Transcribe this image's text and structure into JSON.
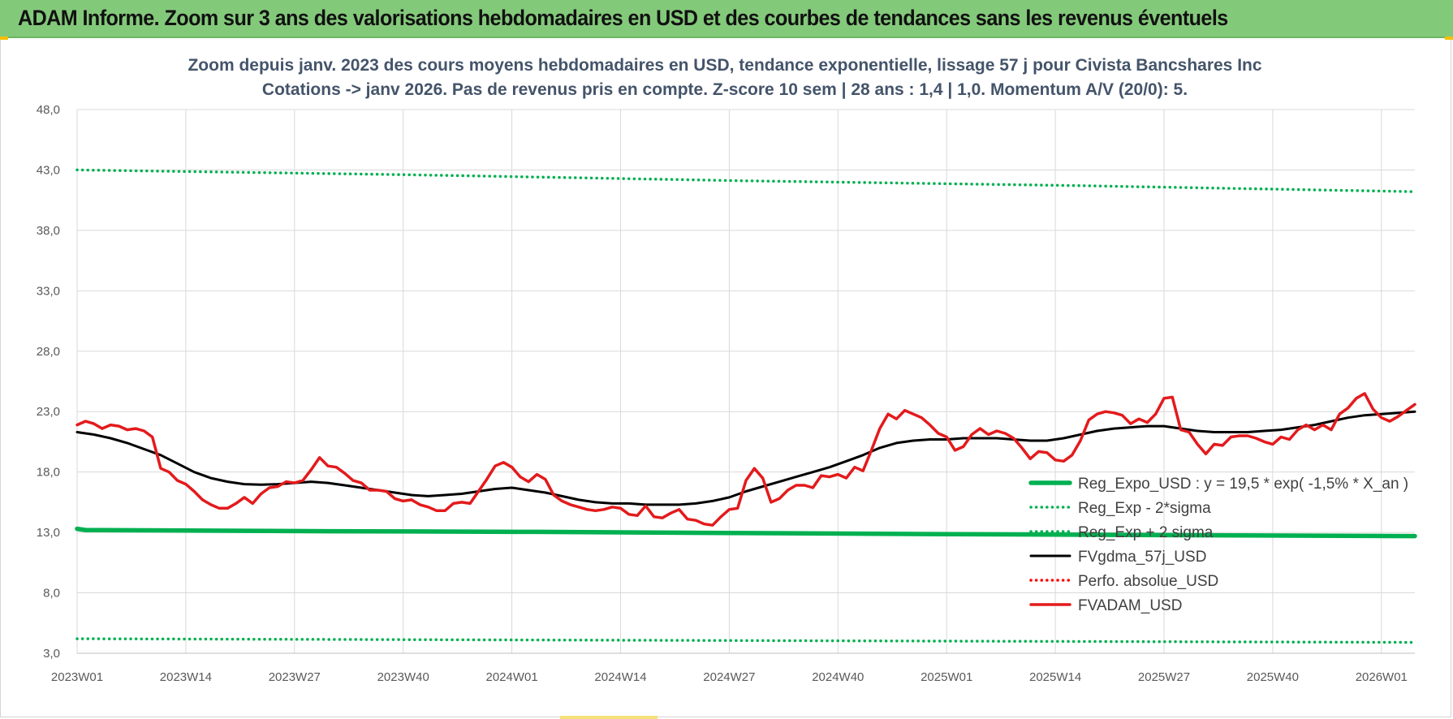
{
  "header": {
    "title": "ADAM Informe. Zoom sur 3 ans des valorisations hebdomadaires en USD et des courbes de tendances sans les revenus éventuels"
  },
  "chart_data": {
    "type": "line",
    "title_line1": "Zoom depuis janv. 2023 des cours moyens hebdomadaires en USD, tendance exponentielle, lissage 57 j pour Civista Bancshares Inc",
    "title_line2": "Cotations -> janv 2026. Pas de revenus pris en compte. Z-score 10 sem | 28 ans : 1,4 | 1,0. Momentum A/V (20/0): 5.",
    "ylim": [
      3,
      48
    ],
    "yticks": [
      "3,0",
      "8,0",
      "13,0",
      "18,0",
      "23,0",
      "28,0",
      "33,0",
      "38,0",
      "43,0",
      "48,0"
    ],
    "xticks": [
      {
        "label": "2023W01",
        "week": 0
      },
      {
        "label": "2023W14",
        "week": 13
      },
      {
        "label": "2023W27",
        "week": 26
      },
      {
        "label": "2023W40",
        "week": 39
      },
      {
        "label": "2024W01",
        "week": 52
      },
      {
        "label": "2024W14",
        "week": 65
      },
      {
        "label": "2024W27",
        "week": 78
      },
      {
        "label": "2024W40",
        "week": 91
      },
      {
        "label": "2025W01",
        "week": 104
      },
      {
        "label": "2025W14",
        "week": 117
      },
      {
        "label": "2025W27",
        "week": 130
      },
      {
        "label": "2025W40",
        "week": 143
      },
      {
        "label": "2026W01",
        "week": 156
      }
    ],
    "x_range_weeks": [
      0,
      160
    ],
    "series": [
      {
        "name": "Reg_Expo_USD : y = 19,5 * exp( -1,5% *  X_an )",
        "color": "#00b050",
        "style": "solid-thick",
        "points": [
          [
            0,
            13.3
          ],
          [
            1,
            13.2
          ],
          [
            30,
            13.1
          ],
          [
            55,
            13.05
          ],
          [
            80,
            12.95
          ],
          [
            105,
            12.85
          ],
          [
            160,
            12.7
          ]
        ]
      },
      {
        "name": "Reg_Exp - 2*sigma",
        "color": "#00b050",
        "style": "dotted",
        "points": [
          [
            0,
            4.2
          ],
          [
            160,
            3.9
          ]
        ]
      },
      {
        "name": "Reg_Exp + 2 sigma",
        "color": "#00b050",
        "style": "dotted",
        "points": [
          [
            0,
            43.0
          ],
          [
            40,
            42.6
          ],
          [
            80,
            42.1
          ],
          [
            120,
            41.7
          ],
          [
            160,
            41.2
          ]
        ]
      },
      {
        "name": "FVgdma_57j_USD",
        "color": "#000000",
        "style": "solid",
        "points": [
          [
            0,
            21.3
          ],
          [
            2,
            21.1
          ],
          [
            4,
            20.8
          ],
          [
            6,
            20.4
          ],
          [
            8,
            19.9
          ],
          [
            10,
            19.4
          ],
          [
            12,
            18.7
          ],
          [
            14,
            18.0
          ],
          [
            16,
            17.5
          ],
          [
            18,
            17.2
          ],
          [
            20,
            17.0
          ],
          [
            22,
            16.95
          ],
          [
            24,
            17.0
          ],
          [
            26,
            17.1
          ],
          [
            28,
            17.2
          ],
          [
            30,
            17.1
          ],
          [
            32,
            16.9
          ],
          [
            34,
            16.7
          ],
          [
            36,
            16.5
          ],
          [
            38,
            16.3
          ],
          [
            40,
            16.1
          ],
          [
            42,
            16.0
          ],
          [
            44,
            16.1
          ],
          [
            46,
            16.2
          ],
          [
            48,
            16.4
          ],
          [
            50,
            16.6
          ],
          [
            52,
            16.7
          ],
          [
            54,
            16.5
          ],
          [
            56,
            16.3
          ],
          [
            58,
            16.0
          ],
          [
            60,
            15.7
          ],
          [
            62,
            15.5
          ],
          [
            64,
            15.4
          ],
          [
            66,
            15.4
          ],
          [
            68,
            15.3
          ],
          [
            70,
            15.3
          ],
          [
            72,
            15.3
          ],
          [
            74,
            15.4
          ],
          [
            76,
            15.6
          ],
          [
            78,
            15.9
          ],
          [
            80,
            16.4
          ],
          [
            82,
            16.8
          ],
          [
            84,
            17.2
          ],
          [
            86,
            17.6
          ],
          [
            88,
            18.0
          ],
          [
            90,
            18.4
          ],
          [
            92,
            18.9
          ],
          [
            94,
            19.4
          ],
          [
            96,
            20.0
          ],
          [
            98,
            20.4
          ],
          [
            100,
            20.6
          ],
          [
            102,
            20.7
          ],
          [
            104,
            20.7
          ],
          [
            106,
            20.8
          ],
          [
            108,
            20.8
          ],
          [
            110,
            20.8
          ],
          [
            112,
            20.7
          ],
          [
            114,
            20.6
          ],
          [
            116,
            20.6
          ],
          [
            118,
            20.8
          ],
          [
            120,
            21.1
          ],
          [
            122,
            21.4
          ],
          [
            124,
            21.6
          ],
          [
            126,
            21.7
          ],
          [
            128,
            21.8
          ],
          [
            130,
            21.8
          ],
          [
            132,
            21.6
          ],
          [
            134,
            21.4
          ],
          [
            136,
            21.3
          ],
          [
            138,
            21.3
          ],
          [
            140,
            21.3
          ],
          [
            142,
            21.4
          ],
          [
            144,
            21.5
          ],
          [
            146,
            21.7
          ],
          [
            148,
            21.9
          ],
          [
            150,
            22.2
          ],
          [
            152,
            22.5
          ],
          [
            154,
            22.7
          ],
          [
            156,
            22.8
          ],
          [
            158,
            22.9
          ],
          [
            160,
            23.0
          ]
        ]
      },
      {
        "name": "Perfo. absolue_USD",
        "color": "#ff0000",
        "style": "dotted",
        "points": []
      },
      {
        "name": "FVADAM_USD",
        "color": "#e31a1c",
        "style": "solid-thick",
        "points": [
          [
            0,
            21.9
          ],
          [
            1,
            22.2
          ],
          [
            2,
            22.0
          ],
          [
            3,
            21.6
          ],
          [
            4,
            21.9
          ],
          [
            5,
            21.8
          ],
          [
            6,
            21.5
          ],
          [
            7,
            21.6
          ],
          [
            8,
            21.4
          ],
          [
            9,
            20.9
          ],
          [
            10,
            18.3
          ],
          [
            11,
            18.0
          ],
          [
            12,
            17.3
          ],
          [
            13,
            17.0
          ],
          [
            14,
            16.4
          ],
          [
            15,
            15.7
          ],
          [
            16,
            15.3
          ],
          [
            17,
            15.0
          ],
          [
            18,
            15.0
          ],
          [
            19,
            15.4
          ],
          [
            20,
            15.9
          ],
          [
            21,
            15.4
          ],
          [
            22,
            16.2
          ],
          [
            23,
            16.7
          ],
          [
            24,
            16.8
          ],
          [
            25,
            17.2
          ],
          [
            26,
            17.1
          ],
          [
            27,
            17.3
          ],
          [
            28,
            18.2
          ],
          [
            29,
            19.2
          ],
          [
            30,
            18.5
          ],
          [
            31,
            18.4
          ],
          [
            32,
            17.9
          ],
          [
            33,
            17.3
          ],
          [
            34,
            17.1
          ],
          [
            35,
            16.5
          ],
          [
            36,
            16.5
          ],
          [
            37,
            16.4
          ],
          [
            38,
            15.8
          ],
          [
            39,
            15.6
          ],
          [
            40,
            15.7
          ],
          [
            41,
            15.3
          ],
          [
            42,
            15.1
          ],
          [
            43,
            14.8
          ],
          [
            44,
            14.8
          ],
          [
            45,
            15.4
          ],
          [
            46,
            15.5
          ],
          [
            47,
            15.4
          ],
          [
            48,
            16.4
          ],
          [
            49,
            17.4
          ],
          [
            50,
            18.5
          ],
          [
            51,
            18.8
          ],
          [
            52,
            18.4
          ],
          [
            53,
            17.6
          ],
          [
            54,
            17.2
          ],
          [
            55,
            17.8
          ],
          [
            56,
            17.4
          ],
          [
            57,
            16.1
          ],
          [
            58,
            15.6
          ],
          [
            59,
            15.3
          ],
          [
            60,
            15.1
          ],
          [
            61,
            14.9
          ],
          [
            62,
            14.8
          ],
          [
            63,
            14.9
          ],
          [
            64,
            15.1
          ],
          [
            65,
            15.0
          ],
          [
            66,
            14.5
          ],
          [
            67,
            14.4
          ],
          [
            68,
            15.2
          ],
          [
            69,
            14.3
          ],
          [
            70,
            14.2
          ],
          [
            71,
            14.6
          ],
          [
            72,
            14.9
          ],
          [
            73,
            14.1
          ],
          [
            74,
            14.0
          ],
          [
            75,
            13.7
          ],
          [
            76,
            13.6
          ],
          [
            77,
            14.3
          ],
          [
            78,
            14.9
          ],
          [
            79,
            15.0
          ],
          [
            80,
            17.3
          ],
          [
            81,
            18.3
          ],
          [
            82,
            17.5
          ],
          [
            83,
            15.5
          ],
          [
            84,
            15.8
          ],
          [
            85,
            16.5
          ],
          [
            86,
            16.9
          ],
          [
            87,
            16.9
          ],
          [
            88,
            16.7
          ],
          [
            89,
            17.7
          ],
          [
            90,
            17.6
          ],
          [
            91,
            17.8
          ],
          [
            92,
            17.5
          ],
          [
            93,
            18.4
          ],
          [
            94,
            18.1
          ],
          [
            95,
            19.8
          ],
          [
            96,
            21.6
          ],
          [
            97,
            22.8
          ],
          [
            98,
            22.4
          ],
          [
            99,
            23.1
          ],
          [
            100,
            22.8
          ],
          [
            101,
            22.5
          ],
          [
            102,
            21.9
          ],
          [
            103,
            21.2
          ],
          [
            104,
            20.9
          ],
          [
            105,
            19.8
          ],
          [
            106,
            20.1
          ],
          [
            107,
            21.1
          ],
          [
            108,
            21.6
          ],
          [
            109,
            21.1
          ],
          [
            110,
            21.4
          ],
          [
            111,
            21.2
          ],
          [
            112,
            20.8
          ],
          [
            113,
            20.0
          ],
          [
            114,
            19.1
          ],
          [
            115,
            19.7
          ],
          [
            116,
            19.6
          ],
          [
            117,
            19.0
          ],
          [
            118,
            18.9
          ],
          [
            119,
            19.4
          ],
          [
            120,
            20.6
          ],
          [
            121,
            22.3
          ],
          [
            122,
            22.8
          ],
          [
            123,
            23.0
          ],
          [
            124,
            22.9
          ],
          [
            125,
            22.7
          ],
          [
            126,
            22.0
          ],
          [
            127,
            22.4
          ],
          [
            128,
            22.1
          ],
          [
            129,
            22.8
          ],
          [
            130,
            24.1
          ],
          [
            131,
            24.2
          ],
          [
            132,
            21.5
          ],
          [
            133,
            21.3
          ],
          [
            134,
            20.3
          ],
          [
            135,
            19.5
          ],
          [
            136,
            20.3
          ],
          [
            137,
            20.2
          ],
          [
            138,
            20.9
          ],
          [
            139,
            21.0
          ],
          [
            140,
            21.0
          ],
          [
            141,
            20.8
          ],
          [
            142,
            20.5
          ],
          [
            143,
            20.3
          ],
          [
            144,
            20.9
          ],
          [
            145,
            20.7
          ],
          [
            146,
            21.5
          ],
          [
            147,
            21.9
          ],
          [
            148,
            21.5
          ],
          [
            149,
            21.9
          ],
          [
            150,
            21.5
          ],
          [
            151,
            22.8
          ],
          [
            152,
            23.3
          ],
          [
            153,
            24.1
          ],
          [
            154,
            24.5
          ],
          [
            155,
            23.2
          ],
          [
            156,
            22.5
          ],
          [
            157,
            22.2
          ],
          [
            158,
            22.6
          ],
          [
            159,
            23.1
          ],
          [
            160,
            23.6
          ]
        ]
      }
    ]
  }
}
